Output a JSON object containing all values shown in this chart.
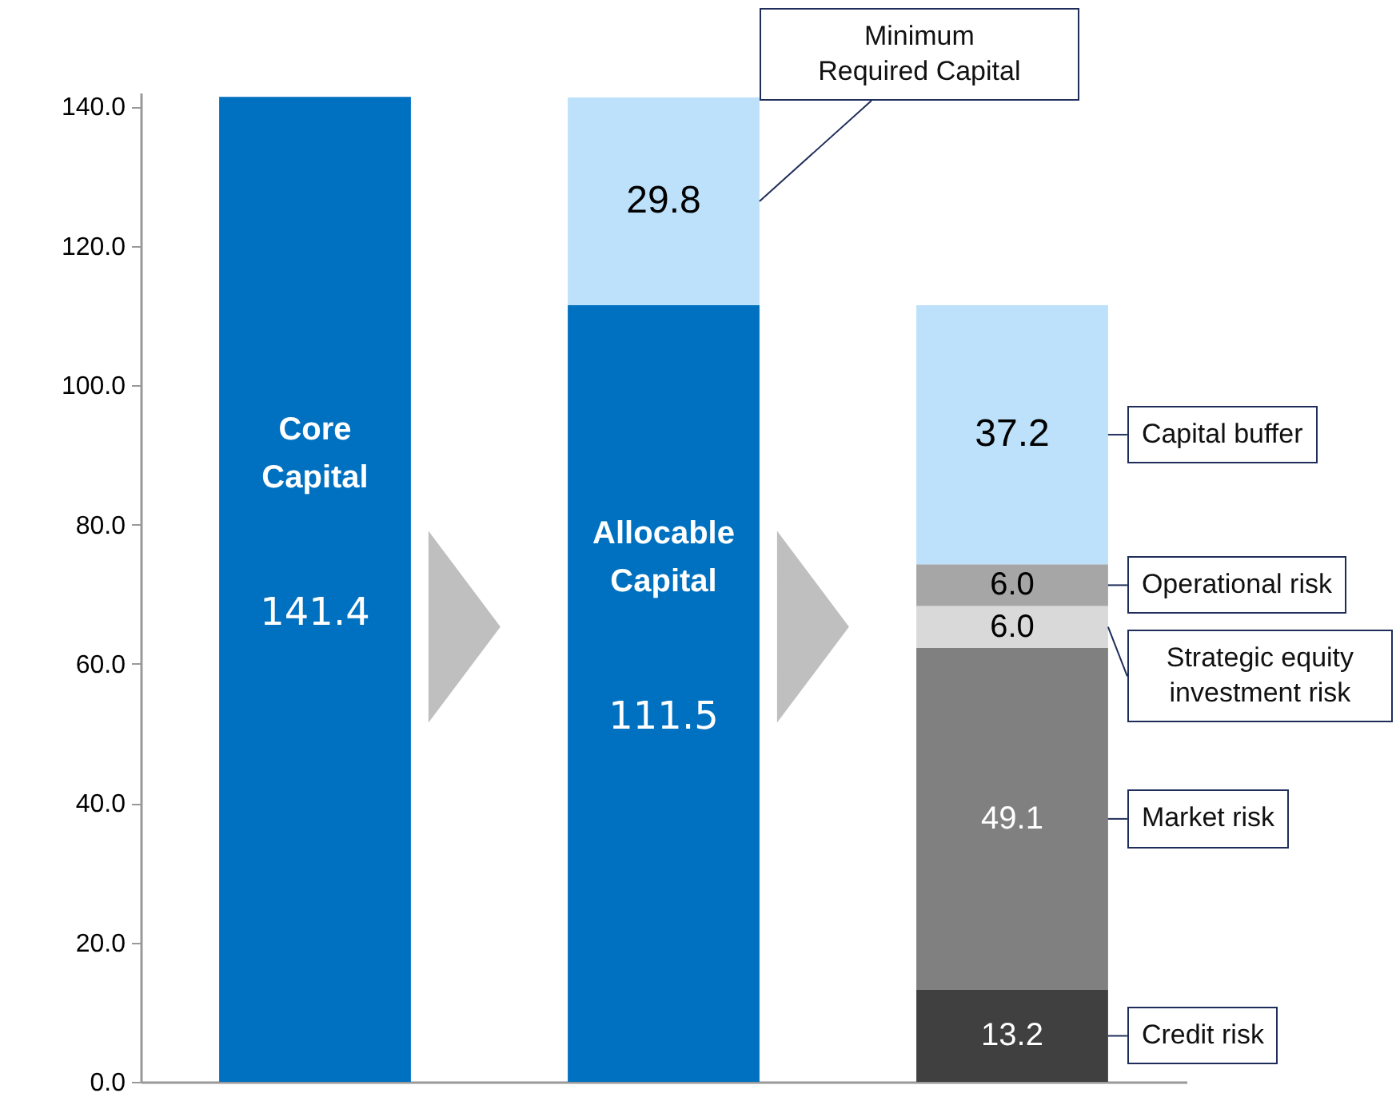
{
  "chart_data": {
    "type": "bar",
    "stacked": true,
    "categories": [
      null,
      null,
      null
    ],
    "ylim": [
      0,
      142
    ],
    "yticks": [
      {
        "value": 0,
        "label": "0.0"
      },
      {
        "value": 20,
        "label": "20.0"
      },
      {
        "value": 40,
        "label": "40.0"
      },
      {
        "value": 60,
        "label": "60.0"
      },
      {
        "value": 80,
        "label": "80.0"
      },
      {
        "value": 100,
        "label": "100.0"
      },
      {
        "value": 120,
        "label": "120.0"
      },
      {
        "value": 140,
        "label": "140.0"
      }
    ],
    "series": [
      {
        "name": "Core Capital",
        "color": "#0070c0",
        "values": [
          141.4,
          null,
          null
        ],
        "value_labels": [
          "141.4",
          null,
          null
        ]
      },
      {
        "name": "Allocable Capital",
        "color": "#0070c0",
        "values": [
          null,
          111.5,
          null
        ],
        "value_labels": [
          null,
          "111.5",
          null
        ]
      },
      {
        "name": "Minimum Required Capital",
        "color": "#bde1fb",
        "values": [
          null,
          29.8,
          null
        ],
        "value_labels": [
          null,
          "29.8",
          null
        ]
      },
      {
        "name": "Credit risk",
        "color": "#404040",
        "values": [
          null,
          null,
          13.2
        ],
        "value_labels": [
          null,
          null,
          "13.2"
        ]
      },
      {
        "name": "Market risk",
        "color": "#808080",
        "values": [
          null,
          null,
          49.1
        ],
        "value_labels": [
          null,
          null,
          "49.1"
        ]
      },
      {
        "name": "Strategic equity investment risk",
        "color": "#d9d9d9",
        "values": [
          null,
          null,
          6.0
        ],
        "value_labels": [
          null,
          null,
          "6.0"
        ]
      },
      {
        "name": "Operational risk",
        "color": "#a6a6a6",
        "values": [
          null,
          null,
          6.0
        ],
        "value_labels": [
          null,
          null,
          "6.0"
        ]
      },
      {
        "name": "Capital buffer",
        "color": "#bde1fb",
        "values": [
          null,
          null,
          37.2
        ],
        "value_labels": [
          null,
          null,
          "37.2"
        ]
      }
    ]
  }
}
